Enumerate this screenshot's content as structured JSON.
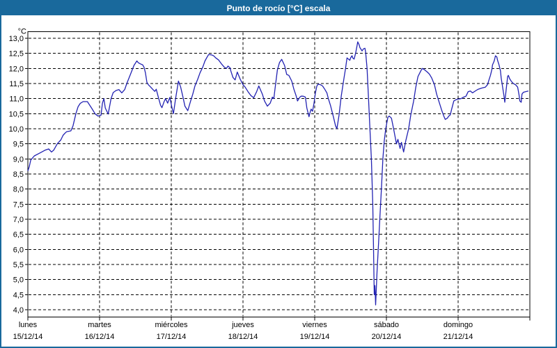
{
  "window": {
    "title": "Punto de rocío [°C] escala",
    "title_bar_color": "#19699c",
    "border_color": "#19699c",
    "background": "#ffffff"
  },
  "chart_data": {
    "type": "line",
    "title": "Punto de rocío [°C] escala",
    "grid": "dashed",
    "grid_color": "#000000",
    "line_color": "#2222b2",
    "frame_color": "#000000",
    "legend": "none",
    "y_axis": {
      "unit_label": "°C",
      "min": 4.0,
      "max": 13.0,
      "step": 0.5,
      "tick_labels": [
        "13,0",
        "12,5",
        "12,0",
        "11,5",
        "11,0",
        "10,5",
        "10,0",
        "9,5",
        "9,0",
        "8,5",
        "8,0",
        "7,5",
        "7,0",
        "6,5",
        "6,0",
        "5,5",
        "5,0",
        "4,5",
        "4,0"
      ]
    },
    "x_axis": {
      "span_days": 7,
      "days": [
        {
          "name": "lunes",
          "date": "15/12/14"
        },
        {
          "name": "martes",
          "date": "16/12/14"
        },
        {
          "name": "miércoles",
          "date": "17/12/14"
        },
        {
          "name": "jueves",
          "date": "18/12/14"
        },
        {
          "name": "viernes",
          "date": "19/12/14"
        },
        {
          "name": "sábado",
          "date": "20/12/14"
        },
        {
          "name": "domingo",
          "date": "21/12/14"
        }
      ]
    },
    "series": [
      {
        "name": "Punto de rocío",
        "points": [
          [
            0,
            8.6
          ],
          [
            0.02,
            8.75
          ],
          [
            0.04,
            8.96
          ],
          [
            0.09,
            9.1
          ],
          [
            0.17,
            9.2
          ],
          [
            0.24,
            9.29
          ],
          [
            0.29,
            9.33
          ],
          [
            0.33,
            9.23
          ],
          [
            0.36,
            9.29
          ],
          [
            0.41,
            9.5
          ],
          [
            0.46,
            9.63
          ],
          [
            0.49,
            9.78
          ],
          [
            0.52,
            9.86
          ],
          [
            0.54,
            9.9
          ],
          [
            0.6,
            9.93
          ],
          [
            0.63,
            10.1
          ],
          [
            0.67,
            10.5
          ],
          [
            0.7,
            10.73
          ],
          [
            0.73,
            10.84
          ],
          [
            0.77,
            10.9
          ],
          [
            0.83,
            10.9
          ],
          [
            0.89,
            10.68
          ],
          [
            0.94,
            10.49
          ],
          [
            0.98,
            10.42
          ],
          [
            1.02,
            10.45
          ],
          [
            1.04,
            10.85
          ],
          [
            1.06,
            11
          ],
          [
            1.08,
            10.69
          ],
          [
            1.11,
            10.54
          ],
          [
            1.12,
            10.49
          ],
          [
            1.16,
            11
          ],
          [
            1.19,
            11.2
          ],
          [
            1.23,
            11.27
          ],
          [
            1.27,
            11.3
          ],
          [
            1.31,
            11.19
          ],
          [
            1.35,
            11.3
          ],
          [
            1.38,
            11.5
          ],
          [
            1.43,
            11.8
          ],
          [
            1.48,
            12.1
          ],
          [
            1.52,
            12.25
          ],
          [
            1.54,
            12.19
          ],
          [
            1.57,
            12.15
          ],
          [
            1.6,
            12.12
          ],
          [
            1.62,
            12.04
          ],
          [
            1.64,
            11.85
          ],
          [
            1.66,
            11.54
          ],
          [
            1.68,
            11.46
          ],
          [
            1.71,
            11.39
          ],
          [
            1.74,
            11.31
          ],
          [
            1.77,
            11.24
          ],
          [
            1.79,
            11.31
          ],
          [
            1.82,
            11.04
          ],
          [
            1.85,
            10.78
          ],
          [
            1.87,
            10.7
          ],
          [
            1.9,
            10.9
          ],
          [
            1.92,
            11
          ],
          [
            1.95,
            10.85
          ],
          [
            1.98,
            11.04
          ],
          [
            2.01,
            10.7
          ],
          [
            2.03,
            10.5
          ],
          [
            2.06,
            11
          ],
          [
            2.1,
            11.58
          ],
          [
            2.13,
            11.39
          ],
          [
            2.16,
            11.08
          ],
          [
            2.19,
            10.75
          ],
          [
            2.23,
            10.6
          ],
          [
            2.27,
            10.92
          ],
          [
            2.3,
            11.15
          ],
          [
            2.33,
            11.42
          ],
          [
            2.37,
            11.65
          ],
          [
            2.4,
            11.85
          ],
          [
            2.44,
            12.05
          ],
          [
            2.47,
            12.25
          ],
          [
            2.5,
            12.38
          ],
          [
            2.52,
            12.46
          ],
          [
            2.56,
            12.45
          ],
          [
            2.59,
            12.42
          ],
          [
            2.62,
            12.35
          ],
          [
            2.66,
            12.28
          ],
          [
            2.7,
            12.15
          ],
          [
            2.74,
            12.04
          ],
          [
            2.77,
            12
          ],
          [
            2.79,
            12.08
          ],
          [
            2.82,
            12.02
          ],
          [
            2.83,
            11.92
          ],
          [
            2.86,
            11.7
          ],
          [
            2.89,
            11.62
          ],
          [
            2.92,
            11.88
          ],
          [
            2.96,
            11.65
          ],
          [
            3,
            11.46
          ],
          [
            3.03,
            11.38
          ],
          [
            3.07,
            11.23
          ],
          [
            3.11,
            11.1
          ],
          [
            3.15,
            11.03
          ],
          [
            3.19,
            11.23
          ],
          [
            3.22,
            11.42
          ],
          [
            3.27,
            11.15
          ],
          [
            3.3,
            10.92
          ],
          [
            3.34,
            10.75
          ],
          [
            3.38,
            10.85
          ],
          [
            3.41,
            11.05
          ],
          [
            3.43,
            11
          ],
          [
            3.45,
            11.4
          ],
          [
            3.48,
            11.95
          ],
          [
            3.51,
            12.2
          ],
          [
            3.54,
            12.3
          ],
          [
            3.58,
            12.1
          ],
          [
            3.61,
            11.8
          ],
          [
            3.64,
            11.77
          ],
          [
            3.68,
            11.58
          ],
          [
            3.71,
            11.31
          ],
          [
            3.74,
            11.1
          ],
          [
            3.76,
            10.92
          ],
          [
            3.79,
            11.04
          ],
          [
            3.81,
            11.08
          ],
          [
            3.84,
            11.08
          ],
          [
            3.87,
            11.05
          ],
          [
            3.89,
            10.69
          ],
          [
            3.92,
            10.4
          ],
          [
            3.94,
            10.58
          ],
          [
            3.95,
            10.65
          ],
          [
            3.97,
            10.58
          ],
          [
            3.99,
            10.85
          ],
          [
            4.01,
            11.19
          ],
          [
            4.03,
            11.42
          ],
          [
            4.05,
            11.48
          ],
          [
            4.08,
            11.46
          ],
          [
            4.11,
            11.42
          ],
          [
            4.14,
            11.31
          ],
          [
            4.17,
            11.19
          ],
          [
            4.19,
            11
          ],
          [
            4.22,
            10.77
          ],
          [
            4.26,
            10.4
          ],
          [
            4.29,
            10.1
          ],
          [
            4.31,
            10
          ],
          [
            4.34,
            10.46
          ],
          [
            4.37,
            11.08
          ],
          [
            4.41,
            11.7
          ],
          [
            4.43,
            12
          ],
          [
            4.45,
            12.35
          ],
          [
            4.47,
            12.31
          ],
          [
            4.49,
            12.27
          ],
          [
            4.5,
            12.35
          ],
          [
            4.52,
            12.42
          ],
          [
            4.53,
            12.35
          ],
          [
            4.55,
            12.31
          ],
          [
            4.57,
            12.5
          ],
          [
            4.59,
            12.75
          ],
          [
            4.6,
            12.88
          ],
          [
            4.62,
            12.78
          ],
          [
            4.63,
            12.69
          ],
          [
            4.65,
            12.62
          ],
          [
            4.66,
            12.58
          ],
          [
            4.68,
            12.65
          ],
          [
            4.7,
            12.67
          ],
          [
            4.71,
            12.55
          ],
          [
            4.73,
            12
          ],
          [
            4.75,
            11
          ],
          [
            4.77,
            10
          ],
          [
            4.79,
            9
          ],
          [
            4.81,
            7.5
          ],
          [
            4.82,
            6
          ],
          [
            4.83,
            4.5
          ],
          [
            4.84,
            4.8
          ],
          [
            4.85,
            4.16
          ],
          [
            4.87,
            5.3
          ],
          [
            4.89,
            6.2
          ],
          [
            4.91,
            7.1
          ],
          [
            4.93,
            8
          ],
          [
            4.95,
            9
          ],
          [
            4.97,
            9.6
          ],
          [
            4.99,
            10
          ],
          [
            5.02,
            10.38
          ],
          [
            5.04,
            10.42
          ],
          [
            5.07,
            10.35
          ],
          [
            5.1,
            10
          ],
          [
            5.14,
            9.5
          ],
          [
            5.16,
            9.65
          ],
          [
            5.19,
            9.35
          ],
          [
            5.21,
            9.55
          ],
          [
            5.24,
            9.23
          ],
          [
            5.27,
            9.6
          ],
          [
            5.31,
            10
          ],
          [
            5.34,
            10.46
          ],
          [
            5.38,
            10.92
          ],
          [
            5.41,
            11.38
          ],
          [
            5.44,
            11.73
          ],
          [
            5.48,
            11.92
          ],
          [
            5.5,
            12
          ],
          [
            5.53,
            11.96
          ],
          [
            5.57,
            11.88
          ],
          [
            5.6,
            11.81
          ],
          [
            5.63,
            11.69
          ],
          [
            5.67,
            11.46
          ],
          [
            5.7,
            11.15
          ],
          [
            5.73,
            10.92
          ],
          [
            5.77,
            10.62
          ],
          [
            5.8,
            10.42
          ],
          [
            5.82,
            10.31
          ],
          [
            5.85,
            10.35
          ],
          [
            5.87,
            10.42
          ],
          [
            5.89,
            10.46
          ],
          [
            5.91,
            10.65
          ],
          [
            5.94,
            10.92
          ],
          [
            5.96,
            10.95
          ],
          [
            5.99,
            10.98
          ],
          [
            6.04,
            11
          ],
          [
            6.07,
            11.04
          ],
          [
            6.11,
            11.08
          ],
          [
            6.14,
            11.23
          ],
          [
            6.17,
            11.25
          ],
          [
            6.2,
            11.19
          ],
          [
            6.25,
            11.27
          ],
          [
            6.28,
            11.31
          ],
          [
            6.33,
            11.35
          ],
          [
            6.38,
            11.38
          ],
          [
            6.41,
            11.46
          ],
          [
            6.43,
            11.62
          ],
          [
            6.45,
            11.77
          ],
          [
            6.47,
            11.96
          ],
          [
            6.48,
            12.12
          ],
          [
            6.5,
            12.23
          ],
          [
            6.51,
            12.31
          ],
          [
            6.52,
            12.42
          ],
          [
            6.54,
            12.38
          ],
          [
            6.55,
            12.27
          ],
          [
            6.57,
            12.12
          ],
          [
            6.59,
            11.92
          ],
          [
            6.6,
            11.69
          ],
          [
            6.62,
            11.38
          ],
          [
            6.64,
            11.08
          ],
          [
            6.65,
            10.88
          ],
          [
            6.67,
            11.3
          ],
          [
            6.69,
            11.73
          ],
          [
            6.7,
            11.77
          ],
          [
            6.72,
            11.65
          ],
          [
            6.74,
            11.58
          ],
          [
            6.77,
            11.5
          ],
          [
            6.8,
            11.46
          ],
          [
            6.83,
            11.38
          ],
          [
            6.85,
            11.12
          ],
          [
            6.86,
            10.92
          ],
          [
            6.88,
            10.88
          ],
          [
            6.89,
            11.15
          ],
          [
            6.91,
            11.21
          ],
          [
            6.94,
            11.23
          ],
          [
            6.98,
            11.25
          ]
        ]
      }
    ]
  }
}
